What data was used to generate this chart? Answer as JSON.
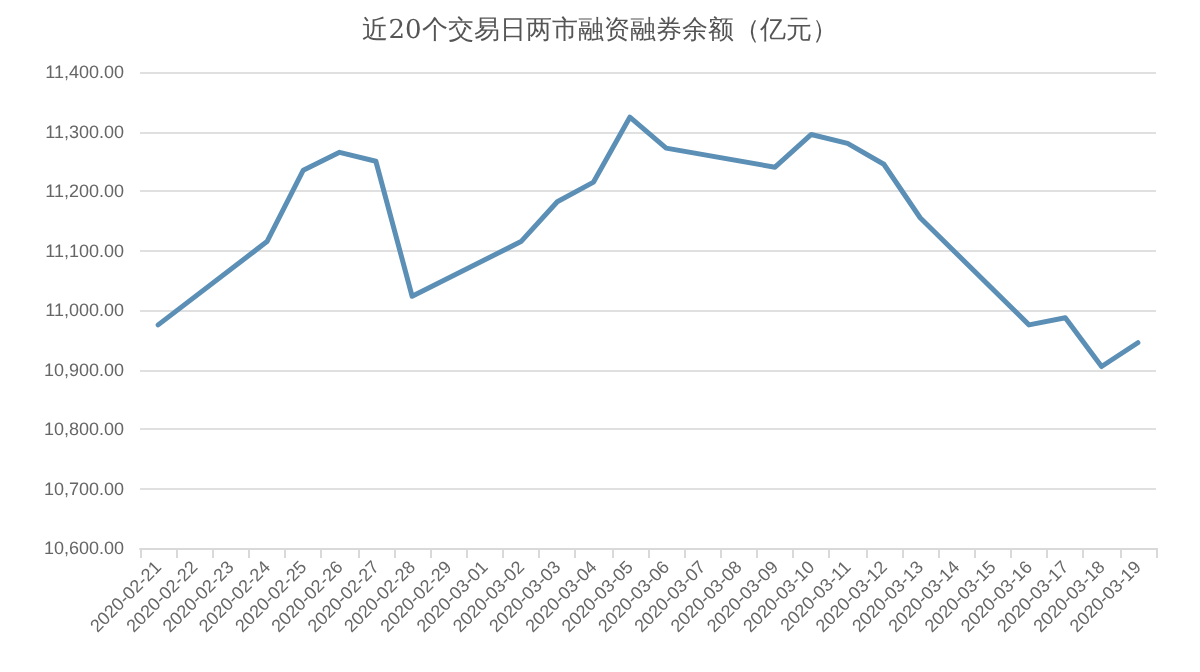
{
  "chart_data": {
    "type": "line",
    "title": "近20个交易日两市融资融券余额（亿元）",
    "categories": [
      "2020-02-21",
      "2020-02-22",
      "2020-02-23",
      "2020-02-24",
      "2020-02-25",
      "2020-02-26",
      "2020-02-27",
      "2020-02-28",
      "2020-02-29",
      "2020-03-01",
      "2020-03-02",
      "2020-03-03",
      "2020-03-04",
      "2020-03-05",
      "2020-03-06",
      "2020-03-07",
      "2020-03-08",
      "2020-03-09",
      "2020-03-10",
      "2020-03-11",
      "2020-03-12",
      "2020-03-13",
      "2020-03-14",
      "2020-03-15",
      "2020-03-16",
      "2020-03-17",
      "2020-03-18",
      "2020-03-19"
    ],
    "series": [
      {
        "color": "#5b8fb5",
        "values": [
          10975,
          null,
          null,
          11115,
          11235,
          11265,
          11250,
          11023,
          null,
          null,
          11115,
          11182,
          11215,
          11324,
          11272,
          null,
          null,
          11240,
          11295,
          11280,
          11245,
          11155,
          null,
          null,
          10975,
          10987,
          10905,
          10945
        ]
      }
    ],
    "ylim": [
      10600,
      11400
    ],
    "yticks": [
      {
        "value": 10600,
        "label": "10,600.00"
      },
      {
        "value": 10700,
        "label": "10,700.00"
      },
      {
        "value": 10800,
        "label": "10,800.00"
      },
      {
        "value": 10900,
        "label": "10,900.00"
      },
      {
        "value": 11000,
        "label": "11,000.00"
      },
      {
        "value": 11100,
        "label": "11,100.00"
      },
      {
        "value": 11200,
        "label": "11,200.00"
      },
      {
        "value": 11300,
        "label": "11,300.00"
      },
      {
        "value": 11400,
        "label": "11,400.00"
      }
    ],
    "grid": "y",
    "marker": "none",
    "line_style": "solid"
  }
}
